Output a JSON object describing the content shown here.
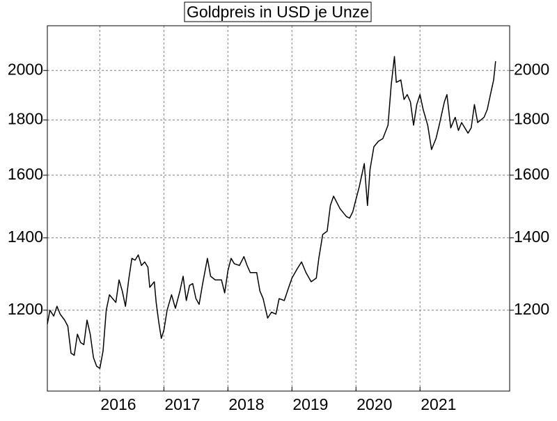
{
  "chart_data": {
    "type": "line",
    "title": "Goldpreis in USD je Unze",
    "log_y": true,
    "grid": true,
    "xlim": [
      2015.18,
      2022.4
    ],
    "xticks": [
      2016,
      2017,
      2018,
      2019,
      2020,
      2021
    ],
    "ylim": [
      1010,
      2200
    ],
    "yticks": [
      1200,
      1400,
      1600,
      1800,
      2000
    ],
    "series": [
      {
        "color": "#000000",
        "x": [
          2015.18,
          2015.22,
          2015.28,
          2015.33,
          2015.38,
          2015.45,
          2015.5,
          2015.55,
          2015.6,
          2015.65,
          2015.7,
          2015.75,
          2015.8,
          2015.85,
          2015.9,
          2015.95,
          2016.0,
          2016.05,
          2016.1,
          2016.15,
          2016.2,
          2016.25,
          2016.3,
          2016.35,
          2016.4,
          2016.45,
          2016.5,
          2016.55,
          2016.6,
          2016.65,
          2016.7,
          2016.75,
          2016.78,
          2016.85,
          2016.88,
          2016.92,
          2016.96,
          2017.0,
          2017.05,
          2017.12,
          2017.18,
          2017.25,
          2017.3,
          2017.35,
          2017.4,
          2017.45,
          2017.5,
          2017.55,
          2017.6,
          2017.68,
          2017.73,
          2017.8,
          2017.9,
          2017.95,
          2018.0,
          2018.05,
          2018.1,
          2018.18,
          2018.25,
          2018.3,
          2018.35,
          2018.45,
          2018.5,
          2018.55,
          2018.62,
          2018.68,
          2018.75,
          2018.8,
          2018.88,
          2018.95,
          2019.0,
          2019.08,
          2019.15,
          2019.22,
          2019.3,
          2019.38,
          2019.42,
          2019.48,
          2019.55,
          2019.6,
          2019.65,
          2019.7,
          2019.75,
          2019.85,
          2019.9,
          2019.95,
          2020.0,
          2020.05,
          2020.13,
          2020.18,
          2020.22,
          2020.28,
          2020.35,
          2020.42,
          2020.5,
          2020.55,
          2020.6,
          2020.63,
          2020.7,
          2020.75,
          2020.8,
          2020.85,
          2020.9,
          2020.95,
          2021.0,
          2021.05,
          2021.12,
          2021.18,
          2021.25,
          2021.3,
          2021.38,
          2021.42,
          2021.48,
          2021.55,
          2021.6,
          2021.65,
          2021.7,
          2021.75,
          2021.8,
          2021.85,
          2021.9,
          2021.95,
          2022.0,
          2022.05,
          2022.1,
          2022.15,
          2022.18
        ],
        "values": [
          1165,
          1200,
          1185,
          1210,
          1190,
          1175,
          1160,
          1095,
          1090,
          1140,
          1120,
          1115,
          1175,
          1140,
          1085,
          1065,
          1060,
          1100,
          1200,
          1240,
          1230,
          1220,
          1280,
          1250,
          1210,
          1280,
          1340,
          1335,
          1350,
          1320,
          1330,
          1315,
          1260,
          1275,
          1220,
          1170,
          1130,
          1150,
          1200,
          1240,
          1205,
          1250,
          1290,
          1225,
          1265,
          1270,
          1230,
          1215,
          1265,
          1340,
          1290,
          1280,
          1280,
          1245,
          1305,
          1340,
          1325,
          1320,
          1345,
          1320,
          1300,
          1300,
          1250,
          1230,
          1180,
          1195,
          1190,
          1230,
          1225,
          1260,
          1285,
          1310,
          1330,
          1300,
          1275,
          1285,
          1340,
          1410,
          1420,
          1500,
          1530,
          1510,
          1490,
          1465,
          1460,
          1480,
          1520,
          1560,
          1640,
          1500,
          1620,
          1700,
          1720,
          1730,
          1780,
          1940,
          2060,
          1950,
          1960,
          1880,
          1900,
          1870,
          1780,
          1860,
          1900,
          1840,
          1780,
          1690,
          1730,
          1780,
          1870,
          1900,
          1770,
          1810,
          1760,
          1790,
          1770,
          1750,
          1770,
          1860,
          1790,
          1800,
          1810,
          1840,
          1900,
          1960,
          2040
        ]
      }
    ]
  }
}
